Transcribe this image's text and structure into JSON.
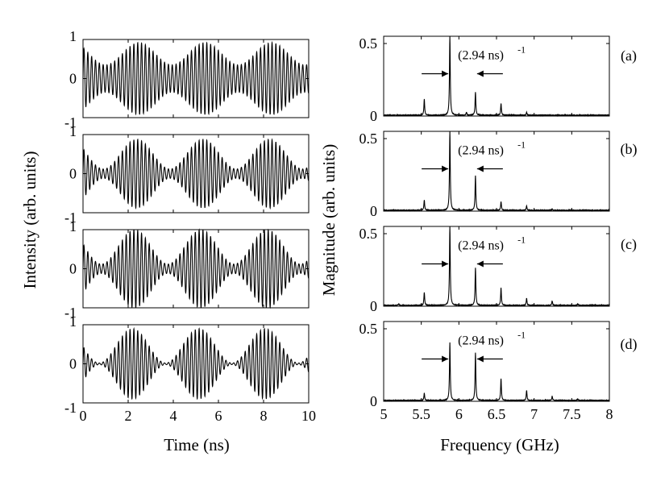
{
  "chart_data": [
    {
      "id": "time-traces",
      "type": "line",
      "xlabel": "Time (ns)",
      "ylabel": "Intensity (arb. units)",
      "xlim": [
        0,
        10
      ],
      "ylim": [
        -1,
        1
      ],
      "x_ticks": [
        "0",
        "2",
        "4",
        "6",
        "8",
        "10"
      ],
      "y_ticks": [
        "-1",
        "0",
        "1"
      ],
      "grid": false,
      "panels": [
        {
          "carrier_GHz": 5.88,
          "beat_GHz": 0.34,
          "phase": 1.0,
          "envelope_min": 0.35,
          "envelope_max": 0.92
        },
        {
          "carrier_GHz": 5.88,
          "beat_GHz": 0.34,
          "phase": 1.2,
          "envelope_min": 0.12,
          "envelope_max": 0.88
        },
        {
          "carrier_GHz": 5.88,
          "beat_GHz": 0.34,
          "phase": 1.4,
          "envelope_min": 0.12,
          "envelope_max": 1.0
        },
        {
          "carrier_GHz": 5.88,
          "beat_GHz": 0.34,
          "phase": 1.6,
          "envelope_min": 0.02,
          "envelope_max": 0.9
        }
      ]
    },
    {
      "id": "spectra",
      "type": "line",
      "xlabel": "Frequency (GHz)",
      "ylabel": "Magnitude (arb. units)",
      "xlim": [
        5,
        8
      ],
      "ylim": [
        0,
        0.55
      ],
      "x_ticks": [
        "5",
        "5.5",
        "6",
        "6.5",
        "7",
        "7.5",
        "8"
      ],
      "y_ticks": [
        "0",
        "0.5"
      ],
      "grid": false,
      "annotation_base": "(2.94 ns)",
      "annotation_exp": "-1",
      "panels": [
        {
          "label": "(a)",
          "peaks": [
            [
              5.54,
              0.11
            ],
            [
              5.88,
              0.55
            ],
            [
              6.1,
              0.02
            ],
            [
              6.22,
              0.16
            ],
            [
              6.56,
              0.08
            ],
            [
              6.9,
              0.02
            ]
          ]
        },
        {
          "label": "(b)",
          "peaks": [
            [
              5.54,
              0.07
            ],
            [
              5.88,
              0.55
            ],
            [
              6.22,
              0.24
            ],
            [
              6.56,
              0.06
            ],
            [
              6.9,
              0.03
            ],
            [
              7.24,
              0.01
            ]
          ]
        },
        {
          "label": "(c)",
          "peaks": [
            [
              5.2,
              0.01
            ],
            [
              5.54,
              0.09
            ],
            [
              5.88,
              0.55
            ],
            [
              6.22,
              0.26
            ],
            [
              6.56,
              0.12
            ],
            [
              6.9,
              0.05
            ],
            [
              7.24,
              0.03
            ],
            [
              7.58,
              0.01
            ]
          ]
        },
        {
          "label": "(d)",
          "peaks": [
            [
              5.54,
              0.05
            ],
            [
              5.88,
              0.4
            ],
            [
              6.22,
              0.33
            ],
            [
              6.56,
              0.15
            ],
            [
              6.9,
              0.07
            ],
            [
              7.24,
              0.03
            ],
            [
              7.58,
              0.01
            ]
          ]
        }
      ]
    }
  ]
}
